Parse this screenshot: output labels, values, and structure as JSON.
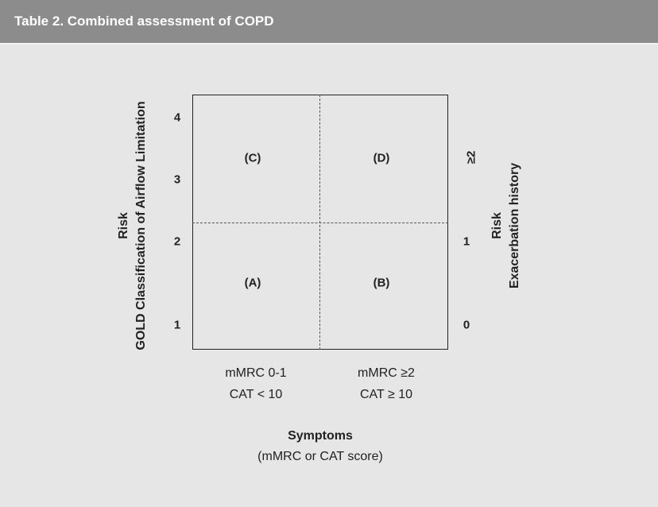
{
  "header": {
    "title": "Table 2. Combined assessment of COPD"
  },
  "quadrants": {
    "c": "(C)",
    "d": "(D)",
    "a": "(A)",
    "b": "(B)"
  },
  "left_axis": {
    "line1": "Risk",
    "line2": "GOLD Classification of Airflow Limitation",
    "ticks": [
      "4",
      "3",
      "2",
      "1"
    ]
  },
  "right_axis": {
    "line1": "Risk",
    "line2": "Exacerbation history",
    "ticks": [
      "≥2",
      "1",
      "0"
    ]
  },
  "x_axis": {
    "col1_line1": "mMRC 0-1",
    "col1_line2": "CAT < 10",
    "col2_line1": "mMRC ≥2",
    "col2_line2": "CAT ≥ 10",
    "title": "Symptoms",
    "subtitle": "(mMRC or CAT score)"
  }
}
